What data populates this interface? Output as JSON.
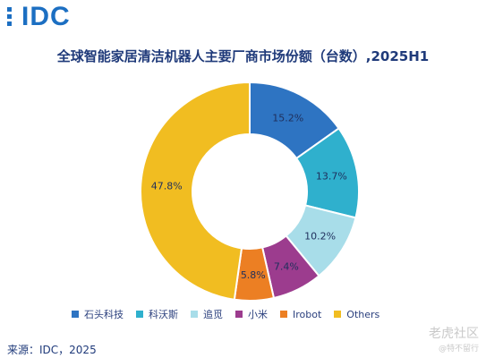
{
  "brand": {
    "logo_text": "IDC",
    "color": "#1c6fc2"
  },
  "source": "来源：IDC，2025",
  "watermark": {
    "main": "老虎社区",
    "sub": "@特不留行"
  },
  "chart_data": {
    "type": "pie",
    "subtype": "donut",
    "title": "全球智能家居清洁机器人主要厂商市场份额（台数）,2025H1",
    "legend_position": "bottom",
    "label_format": "percent",
    "series": [
      {
        "name": "石头科技",
        "value": 15.2,
        "label": "15.2%",
        "color": "#2e74c2"
      },
      {
        "name": "科沃斯",
        "value": 13.7,
        "label": "13.7%",
        "color": "#2fb0cd"
      },
      {
        "name": "追觅",
        "value": 10.2,
        "label": "10.2%",
        "color": "#a8dde9"
      },
      {
        "name": "小米",
        "value": 7.4,
        "label": "7.4%",
        "color": "#9c3c8e"
      },
      {
        "name": "Irobot",
        "value": 5.8,
        "label": "5.8%",
        "color": "#ec7f23"
      },
      {
        "name": "Others",
        "value": 47.8,
        "label": "47.8%",
        "color": "#f1bd21"
      }
    ]
  }
}
